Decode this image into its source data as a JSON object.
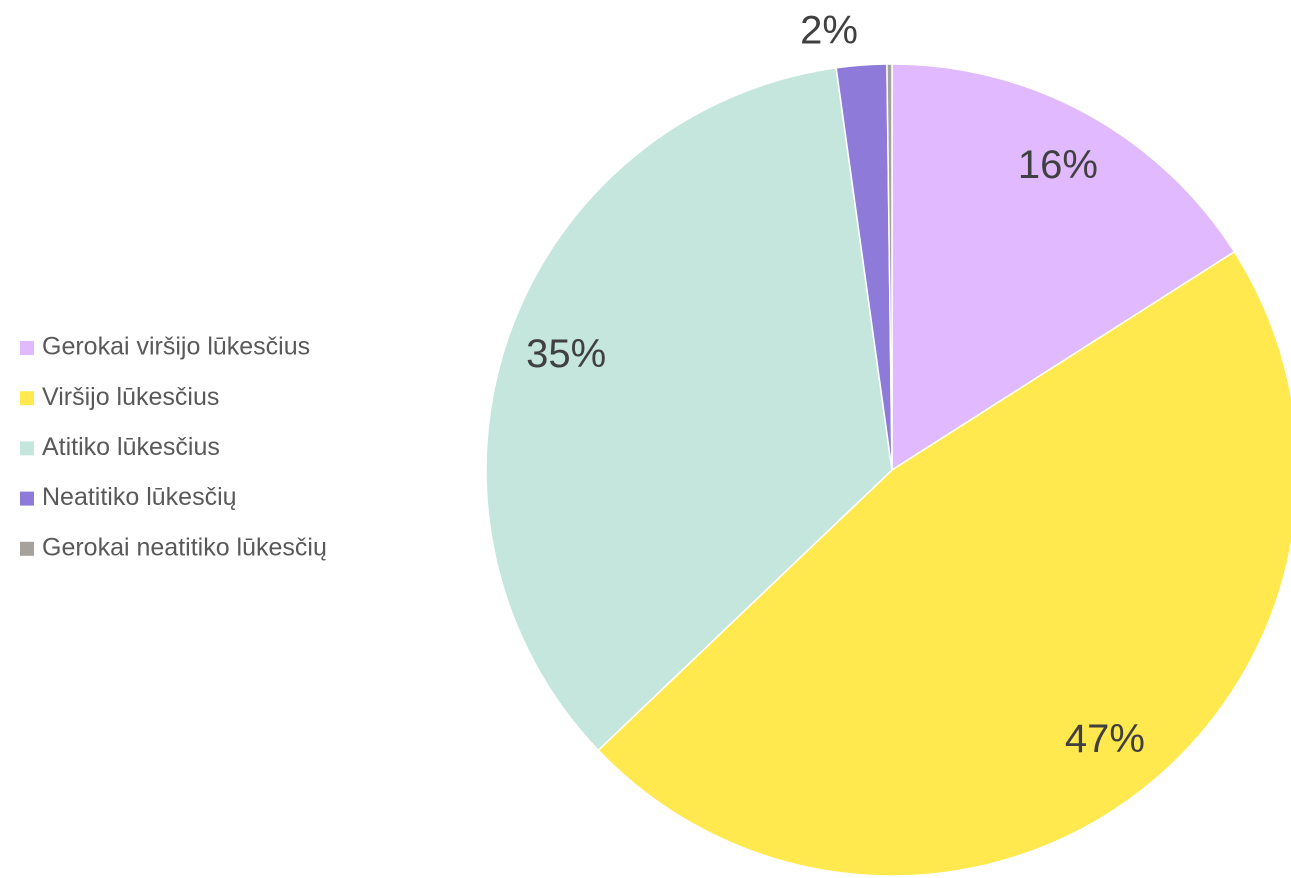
{
  "chart_data": {
    "type": "pie",
    "categories": [
      "Gerokai viršijo lūkesčius",
      "Viršijo lūkesčius",
      "Atitiko lūkesčius",
      "Neatitiko lūkesčių",
      "Gerokai neatitiko lūkesčių"
    ],
    "values": [
      16,
      47,
      35,
      2,
      0.2
    ],
    "value_labels": [
      "16%",
      "47%",
      "35%",
      "2%",
      null
    ],
    "colors": [
      "#e0b9fe",
      "#ffe94f",
      "#c5e6dc",
      "#8e7ad9",
      "#a6a19d"
    ],
    "legend": "left"
  }
}
